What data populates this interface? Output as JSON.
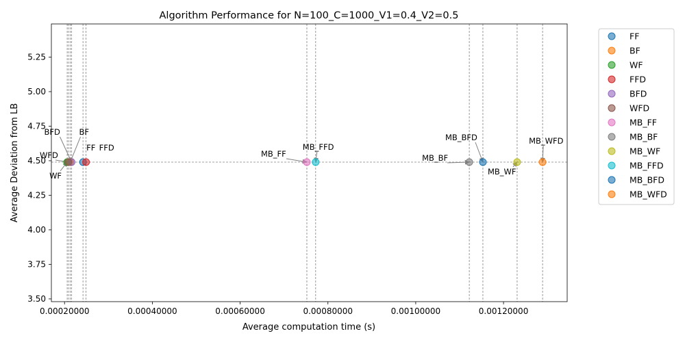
{
  "chart_data": {
    "type": "scatter",
    "title": "Algorithm Performance for N=100_C=1000_V1=0.4_V2=0.5",
    "xlabel": "Average computation time (s)",
    "ylabel": "Average Deviation from LB",
    "xlim": [
      0.00017,
      0.001345
    ],
    "ylim": [
      3.48,
      5.49
    ],
    "x_ticks": [
      0.0002,
      0.0004,
      0.0006,
      0.0008,
      0.001,
      0.0012
    ],
    "x_tick_labels": [
      "0.00020000",
      "0.00040000",
      "0.00060000",
      "0.00080000",
      "0.00100000",
      "0.00120000"
    ],
    "y_ticks": [
      3.5,
      3.75,
      4.0,
      4.25,
      4.5,
      4.75,
      5.0,
      5.25
    ],
    "y_tick_labels": [
      "3.50",
      "3.75",
      "4.00",
      "4.25",
      "4.50",
      "4.75",
      "5.00",
      "5.25"
    ],
    "grid": false,
    "reference_hline": 4.49,
    "legend_position": "outside-right",
    "series": [
      {
        "name": "FF",
        "x": 0.000242,
        "y": 4.49,
        "color": "#1f77b4"
      },
      {
        "name": "BF",
        "x": 0.000213,
        "y": 4.49,
        "color": "#ff7f0e"
      },
      {
        "name": "WF",
        "x": 0.000206,
        "y": 4.49,
        "color": "#2ca02c"
      },
      {
        "name": "FFD",
        "x": 0.000249,
        "y": 4.49,
        "color": "#d62728"
      },
      {
        "name": "BFD",
        "x": 0.000216,
        "y": 4.49,
        "color": "#9467bd"
      },
      {
        "name": "WFD",
        "x": 0.000209,
        "y": 4.49,
        "color": "#8c564b"
      },
      {
        "name": "MB_FF",
        "x": 0.000752,
        "y": 4.49,
        "color": "#e377c2"
      },
      {
        "name": "MB_BF",
        "x": 0.001122,
        "y": 4.49,
        "color": "#7f7f7f"
      },
      {
        "name": "MB_WF",
        "x": 0.001231,
        "y": 4.49,
        "color": "#bcbd22"
      },
      {
        "name": "MB_FFD",
        "x": 0.000772,
        "y": 4.49,
        "color": "#17becf"
      },
      {
        "name": "MB_BFD",
        "x": 0.001153,
        "y": 4.49,
        "color": "#1f77b4"
      },
      {
        "name": "MB_WFD",
        "x": 0.001289,
        "y": 4.49,
        "color": "#ff7f0e"
      }
    ],
    "annotations": [
      {
        "series": "FF",
        "text": "FF"
      },
      {
        "series": "BF",
        "text": "BF"
      },
      {
        "series": "WF",
        "text": "WF"
      },
      {
        "series": "FFD",
        "text": "FFD"
      },
      {
        "series": "BFD",
        "text": "BFD"
      },
      {
        "series": "WFD",
        "text": "WFD"
      },
      {
        "series": "MB_FF",
        "text": "MB_FF"
      },
      {
        "series": "MB_BF",
        "text": "MB_BF"
      },
      {
        "series": "MB_WF",
        "text": "MB_WF"
      },
      {
        "series": "MB_FFD",
        "text": "MB_FFD"
      },
      {
        "series": "MB_BFD",
        "text": "MB_BFD"
      },
      {
        "series": "MB_WFD",
        "text": "MB_WFD"
      }
    ]
  }
}
